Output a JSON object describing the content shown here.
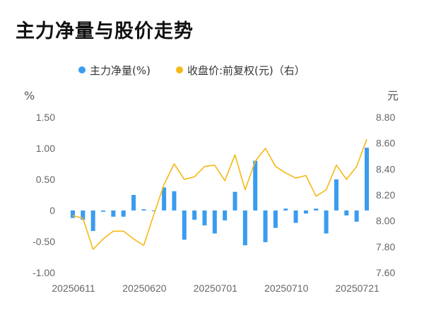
{
  "title": "主力净量与股价走势",
  "colors": {
    "bar": "#3a9cf0",
    "line": "#f5b914",
    "tick": "#666666"
  },
  "chart_data": {
    "type": "bar+line",
    "title": "主力净量与股价走势",
    "left_unit": "%",
    "right_unit": "元",
    "legend": [
      {
        "name": "主力净量(%)",
        "color": "#3a9cf0"
      },
      {
        "name": "收盘价:前复权(元)（右）",
        "color": "#f5b914"
      }
    ],
    "left_axis": {
      "min": -1.0,
      "max": 1.5,
      "ticks": [
        "1.50",
        "1.00",
        "0.50",
        "0",
        "-0.50",
        "-1.00"
      ]
    },
    "right_axis": {
      "min": 7.6,
      "max": 8.8,
      "ticks": [
        "8.80",
        "8.60",
        "8.40",
        "8.20",
        "8.00",
        "7.80",
        "7.60"
      ]
    },
    "x_tick_labels": [
      {
        "index": 0,
        "label": "20250611"
      },
      {
        "index": 7,
        "label": "20250620"
      },
      {
        "index": 14,
        "label": "20250701"
      },
      {
        "index": 21,
        "label": "20250710"
      },
      {
        "index": 28,
        "label": "20250721"
      }
    ],
    "series": [
      {
        "name": "主力净量(%)",
        "kind": "bar",
        "values": [
          -0.12,
          -0.15,
          -0.33,
          -0.02,
          -0.1,
          -0.1,
          0.25,
          0.02,
          -0.01,
          0.37,
          0.31,
          -0.47,
          -0.15,
          -0.24,
          -0.37,
          -0.16,
          0.3,
          -0.56,
          0.8,
          -0.51,
          -0.28,
          0.03,
          -0.2,
          -0.05,
          0.03,
          -0.37,
          0.5,
          -0.08,
          -0.18,
          1.01
        ]
      },
      {
        "name": "收盘价:前复权(元)",
        "kind": "line",
        "axis": "right",
        "values": [
          8.04,
          8.02,
          7.78,
          7.86,
          7.92,
          7.92,
          7.86,
          7.81,
          8.05,
          8.28,
          8.44,
          8.32,
          8.34,
          8.42,
          8.43,
          8.31,
          8.51,
          8.24,
          8.46,
          8.56,
          8.42,
          8.37,
          8.33,
          8.35,
          8.19,
          8.24,
          8.43,
          8.32,
          8.42,
          8.63
        ]
      }
    ]
  }
}
